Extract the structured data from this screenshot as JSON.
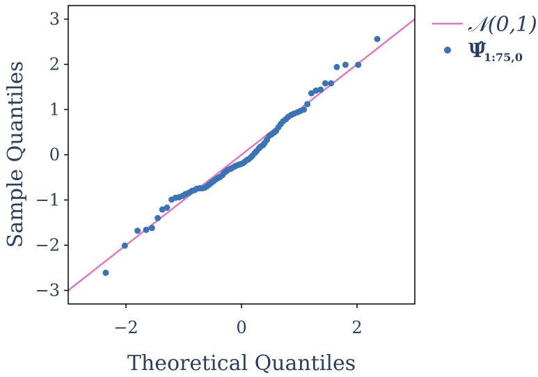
{
  "chart_data": {
    "type": "scatter",
    "xlabel": "Theoretical Quantiles",
    "ylabel": "Sample Quantiles",
    "xlim": [
      -3,
      3
    ],
    "ylim": [
      -3.3,
      3.3
    ],
    "xticks": [
      -2,
      0,
      2
    ],
    "xtick_labels": [
      "−2",
      "0",
      "2"
    ],
    "yticks": [
      -3,
      -2,
      -1,
      0,
      1,
      2,
      3
    ],
    "ytick_labels": [
      "−3",
      "−2",
      "−1",
      "0",
      "1",
      "2",
      "3"
    ],
    "grid": false,
    "legend_position": "outside-right",
    "series": [
      {
        "name": "N(0,1)",
        "legend_main": "𝒩(0,1)",
        "kind": "line",
        "color": "#e377c2",
        "points": [
          [
            -3,
            -3
          ],
          [
            3,
            3
          ]
        ]
      },
      {
        "name": "Ψ̂1:75,0",
        "legend_main": "Ψ̂",
        "legend_sub": "1:75,0",
        "kind": "scatter",
        "color": "#3a74b4",
        "points": [
          [
            -2.35,
            -2.61
          ],
          [
            -2.02,
            -2.01
          ],
          [
            -1.8,
            -1.68
          ],
          [
            -1.65,
            -1.66
          ],
          [
            -1.55,
            -1.62
          ],
          [
            -1.45,
            -1.4
          ],
          [
            -1.37,
            -1.21
          ],
          [
            -1.29,
            -1.17
          ],
          [
            -1.21,
            -0.99
          ],
          [
            -1.14,
            -0.95
          ],
          [
            -1.08,
            -0.94
          ],
          [
            -1.02,
            -0.91
          ],
          [
            -0.97,
            -0.87
          ],
          [
            -0.91,
            -0.84
          ],
          [
            -0.86,
            -0.8
          ],
          [
            -0.81,
            -0.78
          ],
          [
            -0.77,
            -0.75
          ],
          [
            -0.72,
            -0.74
          ],
          [
            -0.68,
            -0.74
          ],
          [
            -0.64,
            -0.73
          ],
          [
            -0.6,
            -0.7
          ],
          [
            -0.56,
            -0.66
          ],
          [
            -0.52,
            -0.62
          ],
          [
            -0.48,
            -0.58
          ],
          [
            -0.44,
            -0.54
          ],
          [
            -0.4,
            -0.51
          ],
          [
            -0.37,
            -0.49
          ],
          [
            -0.33,
            -0.45
          ],
          [
            -0.3,
            -0.4
          ],
          [
            -0.26,
            -0.36
          ],
          [
            -0.23,
            -0.33
          ],
          [
            -0.19,
            -0.31
          ],
          [
            -0.16,
            -0.29
          ],
          [
            -0.12,
            -0.26
          ],
          [
            -0.09,
            -0.24
          ],
          [
            -0.05,
            -0.22
          ],
          [
            -0.02,
            -0.21
          ],
          [
            0.02,
            -0.19
          ],
          [
            0.05,
            -0.16
          ],
          [
            0.09,
            -0.12
          ],
          [
            0.12,
            -0.1
          ],
          [
            0.16,
            -0.06
          ],
          [
            0.19,
            -0.02
          ],
          [
            0.23,
            0.04
          ],
          [
            0.26,
            0.08
          ],
          [
            0.3,
            0.14
          ],
          [
            0.33,
            0.18
          ],
          [
            0.37,
            0.21
          ],
          [
            0.4,
            0.26
          ],
          [
            0.44,
            0.33
          ],
          [
            0.48,
            0.42
          ],
          [
            0.52,
            0.45
          ],
          [
            0.56,
            0.49
          ],
          [
            0.6,
            0.53
          ],
          [
            0.64,
            0.61
          ],
          [
            0.68,
            0.68
          ],
          [
            0.72,
            0.74
          ],
          [
            0.77,
            0.79
          ],
          [
            0.81,
            0.84
          ],
          [
            0.86,
            0.88
          ],
          [
            0.91,
            0.91
          ],
          [
            0.97,
            0.94
          ],
          [
            1.02,
            0.97
          ],
          [
            1.08,
            1.0
          ],
          [
            1.14,
            1.12
          ],
          [
            1.21,
            1.36
          ],
          [
            1.29,
            1.42
          ],
          [
            1.37,
            1.44
          ],
          [
            1.45,
            1.58
          ],
          [
            1.55,
            1.58
          ],
          [
            1.65,
            1.94
          ],
          [
            1.8,
            1.99
          ],
          [
            2.02,
            1.99
          ],
          [
            2.35,
            2.56
          ]
        ]
      }
    ]
  }
}
